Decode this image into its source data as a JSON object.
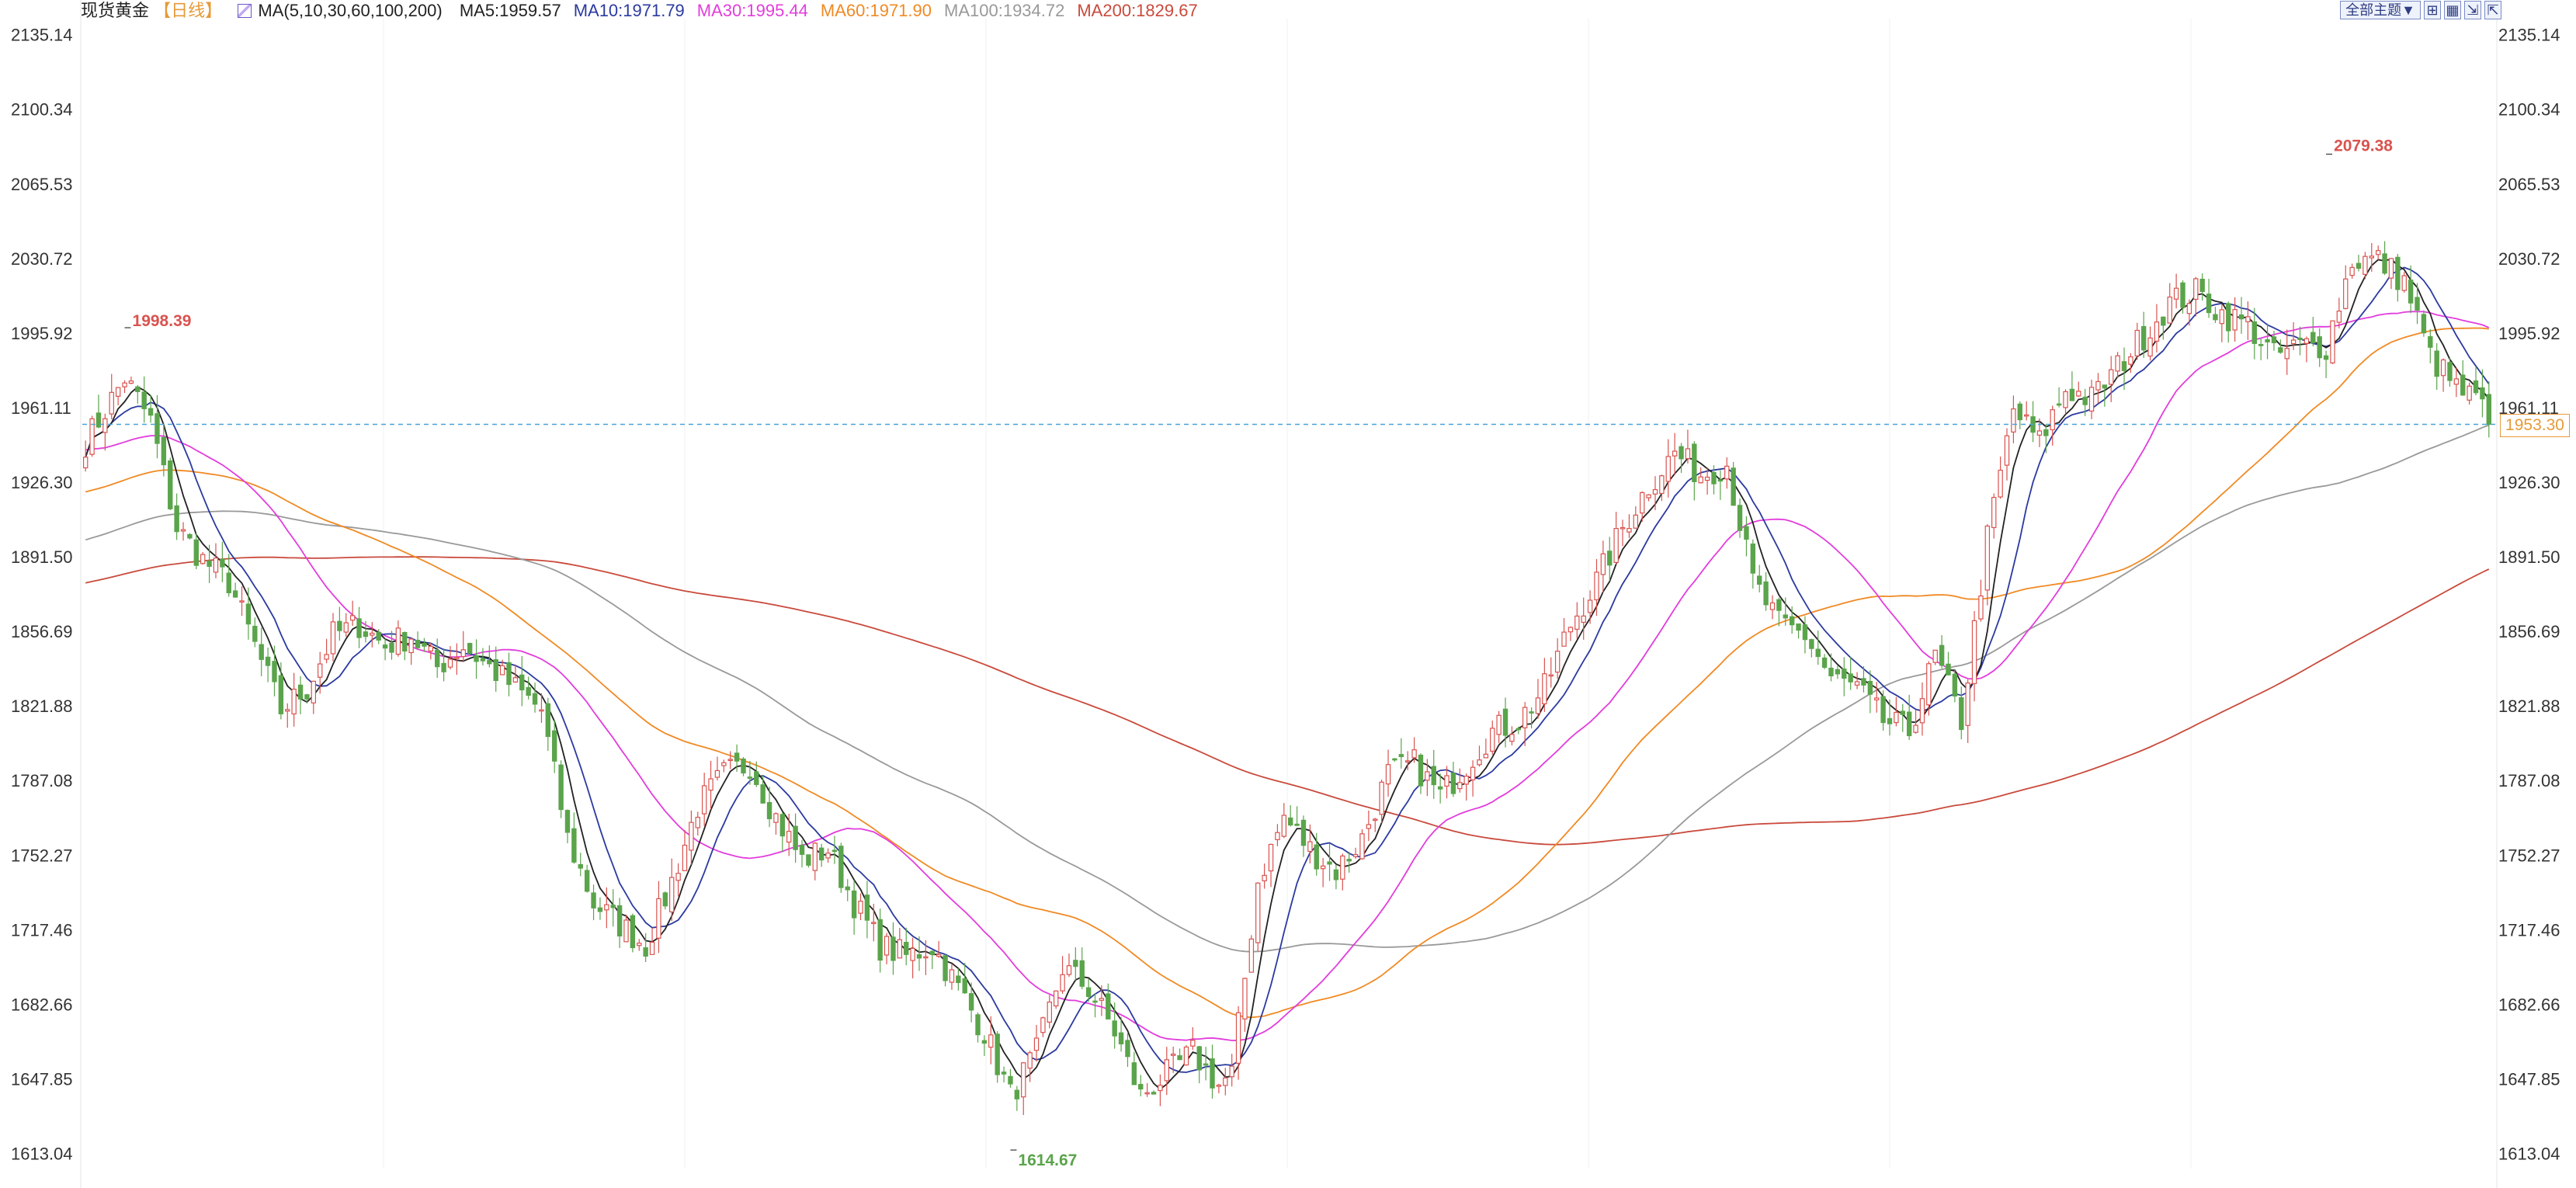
{
  "header": {
    "symbol": "现货黄金",
    "period": "【日线】",
    "ma_label": "MA(5,10,30,60,100,200)",
    "ma_values": [
      {
        "text": "MA5:1959.57",
        "color": "#222222"
      },
      {
        "text": "MA10:1971.79",
        "color": "#2b3aa0"
      },
      {
        "text": "MA30:1995.44",
        "color": "#e23ddc"
      },
      {
        "text": "MA60:1971.90",
        "color": "#f08a24"
      },
      {
        "text": "MA100:1934.72",
        "color": "#999999"
      },
      {
        "text": "MA200:1829.67",
        "color": "#c94a3c"
      }
    ]
  },
  "toolbar": {
    "theme_label": "全部主题▼",
    "icons": [
      "grid-icon",
      "layout-icon",
      "expand-icon",
      "collapse-icon"
    ]
  },
  "chart_data": {
    "type": "candlestick",
    "y_ticks": [
      "2135.14",
      "2100.34",
      "2065.53",
      "2030.72",
      "1995.92",
      "1961.11",
      "1926.30",
      "1891.50",
      "1856.69",
      "1821.88",
      "1787.08",
      "1752.27",
      "1717.46",
      "1682.66",
      "1647.85",
      "1613.04"
    ],
    "ylim": [
      1606,
      2139
    ],
    "current_price": "1953.30",
    "annotations": {
      "high": "2079.38",
      "low": "1614.67",
      "left_high": "1998.39"
    },
    "up_color": "#d9534f",
    "down_color": "#5aa44b",
    "ma_colors": {
      "ma5": "#222222",
      "ma10": "#2b3aa0",
      "ma30": "#e23ddc",
      "ma60": "#f08a24",
      "ma100": "#999999",
      "ma200": "#c94a3c"
    },
    "anchors": [
      [
        0,
        1945
      ],
      [
        6,
        1975
      ],
      [
        10,
        1955
      ],
      [
        14,
        1905
      ],
      [
        18,
        1890
      ],
      [
        22,
        1880
      ],
      [
        26,
        1850
      ],
      [
        30,
        1820
      ],
      [
        34,
        1830
      ],
      [
        38,
        1855
      ],
      [
        42,
        1860
      ],
      [
        46,
        1850
      ],
      [
        50,
        1855
      ],
      [
        54,
        1840
      ],
      [
        58,
        1850
      ],
      [
        62,
        1840
      ],
      [
        66,
        1830
      ],
      [
        70,
        1820
      ],
      [
        74,
        1760
      ],
      [
        78,
        1730
      ],
      [
        82,
        1720
      ],
      [
        86,
        1710
      ],
      [
        90,
        1740
      ],
      [
        94,
        1775
      ],
      [
        98,
        1790
      ],
      [
        102,
        1795
      ],
      [
        106,
        1770
      ],
      [
        110,
        1750
      ],
      [
        114,
        1755
      ],
      [
        118,
        1730
      ],
      [
        122,
        1710
      ],
      [
        126,
        1705
      ],
      [
        130,
        1710
      ],
      [
        134,
        1690
      ],
      [
        138,
        1670
      ],
      [
        142,
        1640
      ],
      [
        146,
        1660
      ],
      [
        150,
        1700
      ],
      [
        154,
        1690
      ],
      [
        158,
        1670
      ],
      [
        162,
        1640
      ],
      [
        166,
        1650
      ],
      [
        170,
        1660
      ],
      [
        174,
        1645
      ],
      [
        176,
        1650
      ],
      [
        180,
        1740
      ],
      [
        184,
        1770
      ],
      [
        188,
        1755
      ],
      [
        192,
        1745
      ],
      [
        196,
        1760
      ],
      [
        200,
        1790
      ],
      [
        204,
        1795
      ],
      [
        208,
        1780
      ],
      [
        212,
        1795
      ],
      [
        216,
        1810
      ],
      [
        220,
        1815
      ],
      [
        224,
        1830
      ],
      [
        228,
        1860
      ],
      [
        232,
        1880
      ],
      [
        236,
        1905
      ],
      [
        240,
        1925
      ],
      [
        244,
        1940
      ],
      [
        248,
        1930
      ],
      [
        252,
        1935
      ],
      [
        256,
        1880
      ],
      [
        260,
        1860
      ],
      [
        264,
        1855
      ],
      [
        268,
        1835
      ],
      [
        272,
        1830
      ],
      [
        276,
        1815
      ],
      [
        280,
        1810
      ],
      [
        284,
        1845
      ],
      [
        288,
        1815
      ],
      [
        292,
        1900
      ],
      [
        296,
        1960
      ],
      [
        300,
        1945
      ],
      [
        304,
        1970
      ],
      [
        308,
        1965
      ],
      [
        312,
        1980
      ],
      [
        316,
        1995
      ],
      [
        320,
        2010
      ],
      [
        324,
        2015
      ],
      [
        328,
        2005
      ],
      [
        332,
        2000
      ],
      [
        336,
        1985
      ],
      [
        340,
        1990
      ],
      [
        344,
        1990
      ],
      [
        348,
        2030
      ],
      [
        352,
        2030
      ],
      [
        356,
        2020
      ],
      [
        360,
        1985
      ],
      [
        364,
        1970
      ],
      [
        368,
        1962
      ],
      [
        370,
        1950
      ]
    ]
  }
}
